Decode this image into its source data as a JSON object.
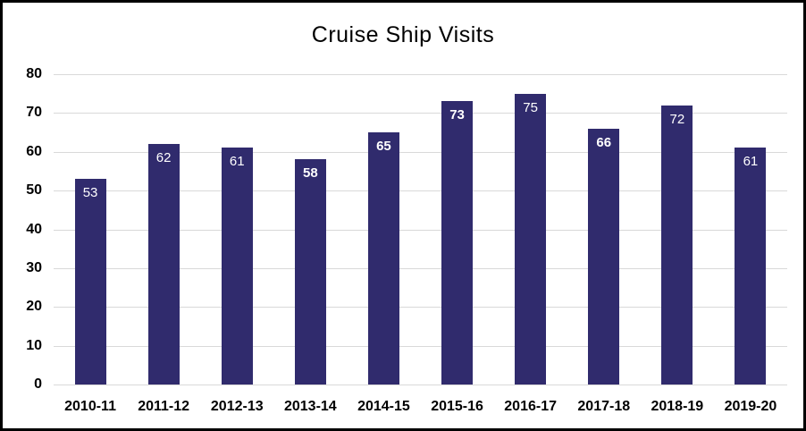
{
  "chart_data": {
    "type": "bar",
    "title": "Cruise Ship Visits",
    "categories": [
      "2010-11",
      "2011-12",
      "2012-13",
      "2013-14",
      "2014-15",
      "2015-16",
      "2016-17",
      "2017-18",
      "2018-19",
      "2019-20"
    ],
    "values": [
      53,
      62,
      61,
      58,
      65,
      73,
      75,
      66,
      72,
      61
    ],
    "value_label_bold": [
      false,
      false,
      false,
      true,
      true,
      true,
      false,
      true,
      false,
      false
    ],
    "xlabel": "",
    "ylabel": "",
    "ylim": [
      0,
      80
    ],
    "ytick_step": 10,
    "ytick_labels": [
      "0",
      "10",
      "20",
      "30",
      "40",
      "50",
      "60",
      "70",
      "80"
    ],
    "grid": true,
    "legend_position": "none",
    "colors": {
      "bar": "#302b6d",
      "gridline": "#d9d9d9",
      "value_label": "#ffffff",
      "axis_text": "#000000",
      "title_text": "#000000",
      "background": "#ffffff",
      "frame_border": "#000000"
    }
  }
}
